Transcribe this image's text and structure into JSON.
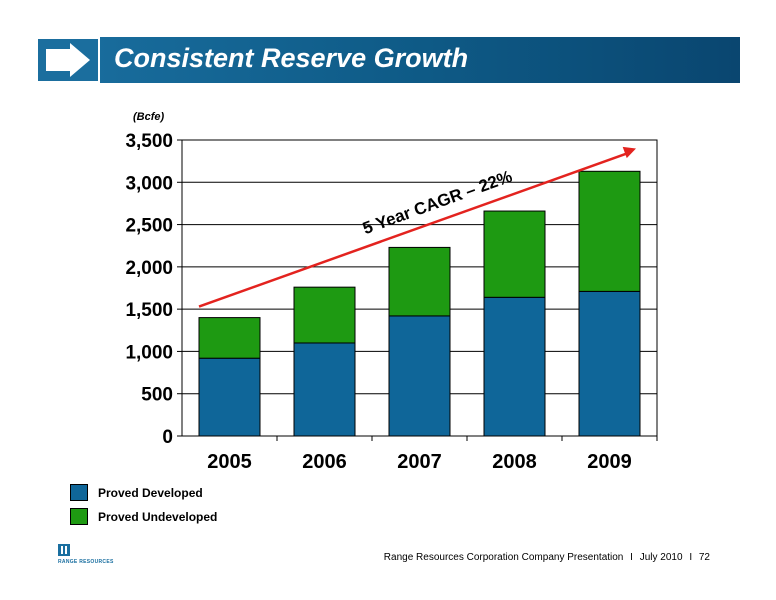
{
  "slide": {
    "title": "Consistent Reserve Growth",
    "unit_label": "(Bcfe)",
    "logo_text": "RANGE RESOURCES",
    "footer": {
      "text": "Range Resources Corporation Company Presentation",
      "separator": "I",
      "date": "July 2010",
      "page": "72"
    }
  },
  "colors": {
    "title_bar": "#0e5a86",
    "proved_developed": "#0f6699",
    "proved_undeveloped": "#1e9a12",
    "trend_arrow": "#e3231f"
  },
  "chart_data": {
    "type": "bar",
    "stacked": true,
    "categories": [
      "2005",
      "2006",
      "2007",
      "2008",
      "2009"
    ],
    "series": [
      {
        "name": "Proved Developed",
        "values": [
          920,
          1100,
          1420,
          1640,
          1710
        ]
      },
      {
        "name": "Proved Undeveloped",
        "values": [
          480,
          660,
          810,
          1020,
          1420
        ]
      }
    ],
    "totals": [
      1400,
      1760,
      2230,
      2660,
      3130
    ],
    "ylabel": "(Bcfe)",
    "ylim": [
      0,
      3500
    ],
    "yticks": [
      0,
      500,
      1000,
      1500,
      2000,
      2500,
      3000,
      3500
    ],
    "ytick_labels": [
      "0",
      "500",
      "1,000",
      "1,500",
      "2,000",
      "2,500",
      "3,000",
      "3,500"
    ],
    "grid": true,
    "legend_position": "bottom-left",
    "annotation": {
      "text": "5 Year CAGR – 22%",
      "arrow_from": 1530,
      "arrow_to": 3400
    }
  }
}
